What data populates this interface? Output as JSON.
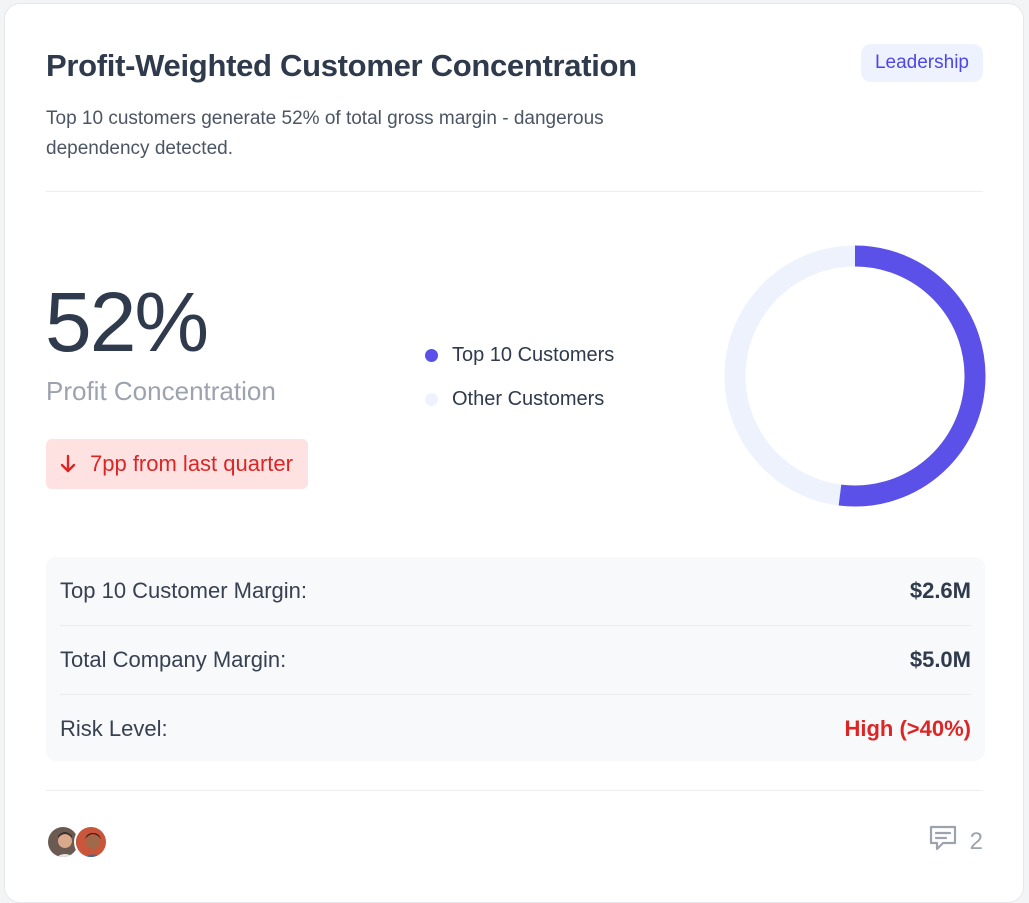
{
  "header": {
    "title": "Profit-Weighted Customer Concentration",
    "subtitle": "Top 10 customers generate 52% of total gross margin - dangerous dependency detected.",
    "badge": "Leadership"
  },
  "metric": {
    "value": "52%",
    "label": "Profit Concentration",
    "trend_text": "7pp from last quarter",
    "trend_direction": "down",
    "trend_icon": "arrow-down-icon"
  },
  "chart_data": {
    "type": "pie",
    "variant": "donut",
    "categories": [
      "Top 10 Customers",
      "Other Customers"
    ],
    "values": [
      52,
      48
    ],
    "colors": [
      "#5b50e8",
      "#eef2fc"
    ]
  },
  "legend": {
    "items": [
      {
        "label": "Top 10 Customers",
        "color": "#5b50e8"
      },
      {
        "label": "Other Customers",
        "color": "#eef2fc"
      }
    ]
  },
  "details": {
    "rows": [
      {
        "label": "Top 10 Customer Margin:",
        "value": "$2.6M"
      },
      {
        "label": "Total Company Margin:",
        "value": "$5.0M"
      },
      {
        "label": "Risk Level:",
        "value": "High (>40%)",
        "status": "risk"
      }
    ]
  },
  "footer": {
    "comment_count": "2",
    "comment_icon": "comment-icon",
    "avatars": [
      "avatar-user-1",
      "avatar-user-2"
    ]
  },
  "colors": {
    "accent": "#5b50e8",
    "danger": "#dc2626",
    "danger_bg": "#fee2e2",
    "badge_bg": "#eef2ff",
    "badge_text": "#4f46e5"
  }
}
